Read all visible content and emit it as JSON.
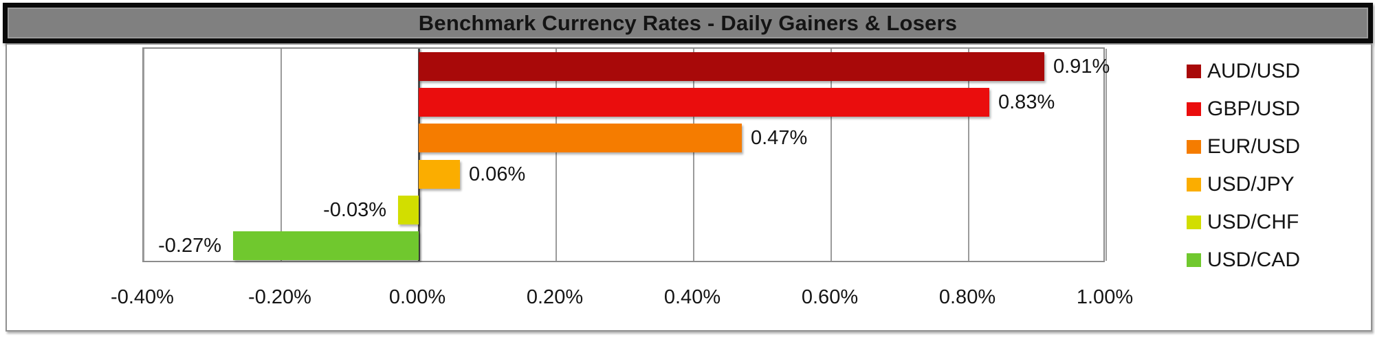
{
  "title": "Benchmark Currency Rates - Daily Gainers & Losers",
  "chart_data": {
    "type": "bar",
    "orientation": "horizontal",
    "title": "Benchmark Currency Rates - Daily Gainers & Losers",
    "categories": [
      "AUD/USD",
      "GBP/USD",
      "EUR/USD",
      "USD/JPY",
      "USD/CHF",
      "USD/CAD"
    ],
    "values": [
      0.91,
      0.83,
      0.47,
      0.06,
      -0.03,
      -0.27
    ],
    "data_labels": [
      "0.91%",
      "0.83%",
      "0.47%",
      "0.06%",
      "-0.03%",
      "-0.27%"
    ],
    "bar_colors": [
      "#A80909",
      "#EA0D0D",
      "#F57C00",
      "#FBAD00",
      "#D2DE00",
      "#70C82E"
    ],
    "xlabel": "",
    "ylabel": "",
    "xlim": [
      -0.4,
      1.0
    ],
    "x_ticks": [
      "-0.40%",
      "-0.20%",
      "0.00%",
      "0.20%",
      "0.40%",
      "0.60%",
      "0.80%",
      "1.00%"
    ],
    "x_tick_values": [
      -0.4,
      -0.2,
      0.0,
      0.2,
      0.4,
      0.6,
      0.8,
      1.0
    ],
    "grid": true,
    "legend_position": "right",
    "legend_entries": [
      "AUD/USD",
      "GBP/USD",
      "EUR/USD",
      "USD/JPY",
      "USD/CHF",
      "USD/CAD"
    ]
  },
  "colors": {
    "title_bar_bg": "#808080",
    "title_bar_border": "#0A0A0A",
    "title_text": "#141414",
    "chart_body_border": "#909090",
    "gridline": "#9B9B9B",
    "zero_axis": "#4A4A4A",
    "label_text": "#141414"
  }
}
